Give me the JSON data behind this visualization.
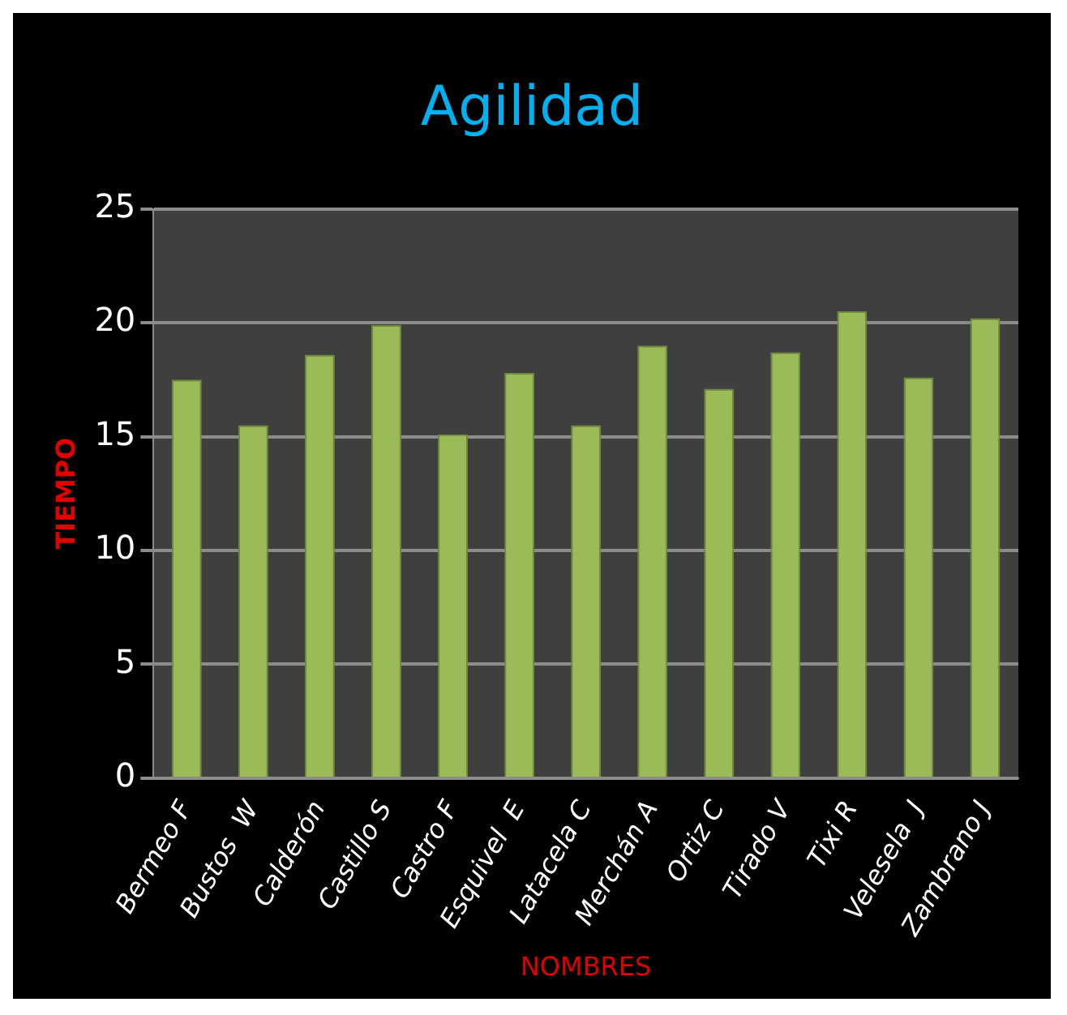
{
  "chart_data": {
    "type": "bar",
    "title": "Agilidad",
    "xlabel": "NOMBRES",
    "ylabel": "TIEMPO",
    "categories": [
      "Bermeo F",
      "Bustos  W",
      "Calderón",
      "Castillo S",
      "Castro F",
      "Esquivel  E",
      "Latacela C",
      "Merchán A",
      "Ortiz C",
      "Tirado V",
      "Tixi R",
      "Velesela  J",
      "Zambrano J"
    ],
    "values": [
      17.5,
      15.5,
      18.6,
      19.9,
      15.1,
      17.8,
      15.5,
      19.0,
      17.1,
      18.7,
      20.5,
      17.6,
      20.2
    ],
    "color": "#9bbb59",
    "ylim": [
      0,
      25
    ],
    "yticks": [
      0,
      5,
      10,
      15,
      20,
      25
    ],
    "grid": "y",
    "legend": false
  }
}
